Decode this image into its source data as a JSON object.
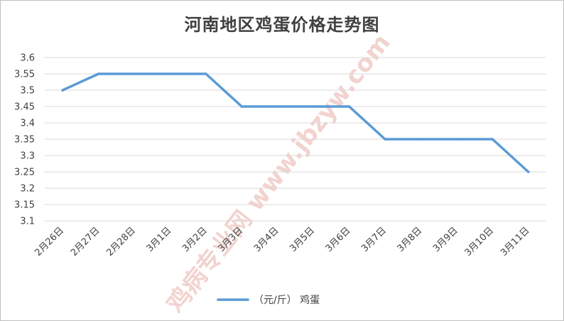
{
  "chart_data": {
    "type": "line",
    "title": "河南地区鸡蛋价格走势图",
    "categories": [
      "2月26日",
      "2月27日",
      "2月28日",
      "3月1日",
      "3月2日",
      "3月3日",
      "3月4日",
      "3月5日",
      "3月6日",
      "3月7日",
      "3月8日",
      "3月9日",
      "3月10日",
      "3月11日"
    ],
    "series": [
      {
        "name": "（元/斤）  鸡蛋",
        "values": [
          3.5,
          3.55,
          3.55,
          3.55,
          3.55,
          3.45,
          3.45,
          3.45,
          3.45,
          3.35,
          3.35,
          3.35,
          3.35,
          3.25
        ],
        "color": "#5b9bd5"
      }
    ],
    "y_ticks": [
      "3.1",
      "3.15",
      "3.2",
      "3.25",
      "3.3",
      "3.35",
      "3.4",
      "3.45",
      "3.5",
      "3.55",
      "3.6"
    ],
    "ylim": [
      3.1,
      3.6
    ],
    "xlabel": "",
    "ylabel": "",
    "grid": true,
    "legend_position": "bottom"
  },
  "watermark": "鸡病专业网 www.jbzyw.com"
}
